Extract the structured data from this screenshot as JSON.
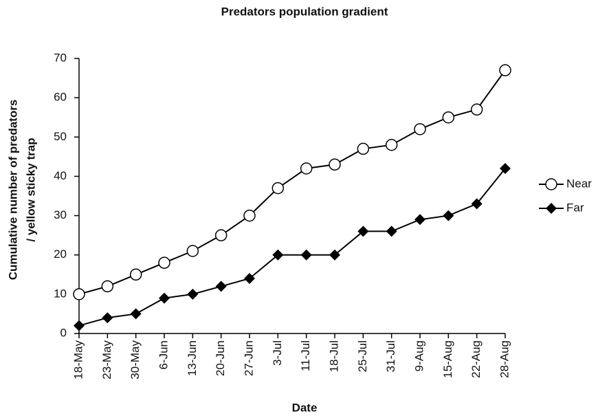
{
  "chart_data": {
    "type": "line",
    "title": "Predators population gradient",
    "xlabel": "Date",
    "ylabel": [
      "Cumulative number of predators",
      "/ yellow sticky trap"
    ],
    "categories": [
      "18-May",
      "23-May",
      "30-May",
      "6-Jun",
      "13-Jun",
      "20-Jun",
      "27-Jun",
      "3-Jul",
      "11-Jul",
      "18-Jul",
      "25-Jul",
      "31-Jul",
      "9-Aug",
      "15-Aug",
      "22-Aug",
      "28-Aug"
    ],
    "series": [
      {
        "name": "Near",
        "color": "#000000",
        "marker": "open-circle",
        "values": [
          10,
          12,
          15,
          18,
          21,
          25,
          30,
          37,
          42,
          43,
          47,
          48,
          52,
          55,
          57,
          67
        ]
      },
      {
        "name": "Far",
        "color": "#000000",
        "marker": "diamond",
        "values": [
          2,
          4,
          5,
          9,
          10,
          12,
          14,
          20,
          20,
          20,
          26,
          26,
          29,
          30,
          33,
          42
        ]
      }
    ],
    "ylim": [
      0,
      70
    ],
    "yticks": [
      0,
      10,
      20,
      30,
      40,
      50,
      60,
      70
    ],
    "grid": false,
    "legend": "right"
  }
}
